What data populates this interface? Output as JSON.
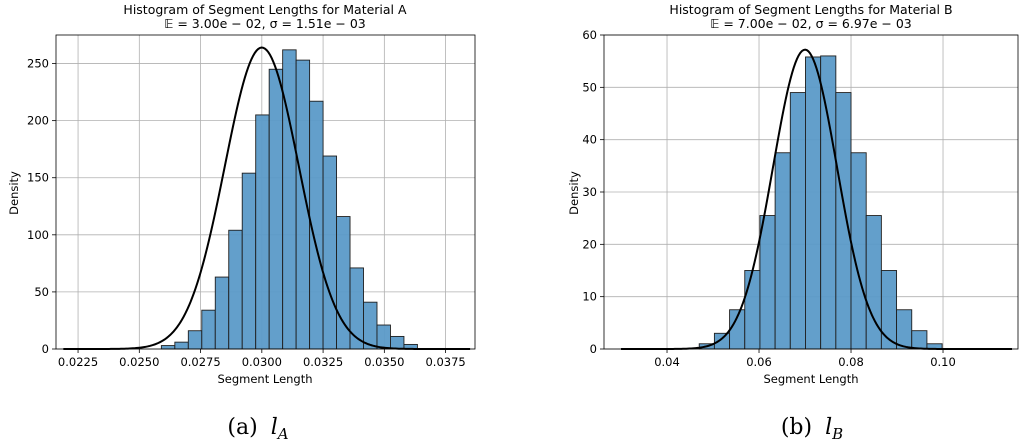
{
  "chart_data": [
    {
      "type": "histogram",
      "title": "Histogram of Segment Lengths for Material A",
      "subtitle": "𝔼 = 3.00e − 02, σ = 1.51e − 03",
      "xlabel": "Segment Length",
      "ylabel": "Density",
      "xlim": [
        0.0216,
        0.0387
      ],
      "ylim": [
        0,
        275
      ],
      "xticks": [
        0.0225,
        0.025,
        0.0275,
        0.03,
        0.0325,
        0.035,
        0.0375
      ],
      "xtick_labels": [
        "0.0225",
        "0.0250",
        "0.0275",
        "0.0300",
        "0.0325",
        "0.0350",
        "0.0375"
      ],
      "yticks": [
        0,
        50,
        100,
        150,
        200,
        250
      ],
      "ytick_labels": [
        "0",
        "50",
        "100",
        "150",
        "200",
        "250"
      ],
      "grid": true,
      "bar_color": "#5b9ac8",
      "curve_color": "#000000",
      "bins": [
        {
          "x0": 0.0259,
          "x1": 0.02645,
          "value": 3
        },
        {
          "x0": 0.02645,
          "x1": 0.027,
          "value": 6
        },
        {
          "x0": 0.027,
          "x1": 0.02755,
          "value": 16
        },
        {
          "x0": 0.02755,
          "x1": 0.0281,
          "value": 34
        },
        {
          "x0": 0.0281,
          "x1": 0.02865,
          "value": 63
        },
        {
          "x0": 0.02865,
          "x1": 0.0292,
          "value": 104
        },
        {
          "x0": 0.0292,
          "x1": 0.02975,
          "value": 154
        },
        {
          "x0": 0.02975,
          "x1": 0.0303,
          "value": 205
        },
        {
          "x0": 0.0303,
          "x1": 0.03085,
          "value": 245
        },
        {
          "x0": 0.03085,
          "x1": 0.0314,
          "value": 262
        },
        {
          "x0": 0.0314,
          "x1": 0.03195,
          "value": 253
        },
        {
          "x0": 0.03195,
          "x1": 0.0325,
          "value": 217
        },
        {
          "x0": 0.0325,
          "x1": 0.03305,
          "value": 169
        },
        {
          "x0": 0.03305,
          "x1": 0.0336,
          "value": 116
        },
        {
          "x0": 0.0336,
          "x1": 0.03415,
          "value": 71
        },
        {
          "x0": 0.03415,
          "x1": 0.0347,
          "value": 41
        },
        {
          "x0": 0.0347,
          "x1": 0.03525,
          "value": 21
        },
        {
          "x0": 0.03525,
          "x1": 0.0358,
          "value": 11
        },
        {
          "x0": 0.0358,
          "x1": 0.03635,
          "value": 4
        }
      ],
      "curve": {
        "mean": 0.03,
        "sigma": 0.00151,
        "xmin": 0.0219,
        "xmax": 0.0385,
        "peak": 264
      }
    },
    {
      "type": "histogram",
      "title": "Histogram of Segment Lengths for Material B",
      "subtitle": "𝔼 = 7.00e − 02, σ = 6.97e − 03",
      "xlabel": "Segment Length",
      "ylabel": "Density",
      "xlim": [
        0.0263,
        0.1163
      ],
      "ylim": [
        0,
        60
      ],
      "xticks": [
        0.04,
        0.06,
        0.08,
        0.1
      ],
      "xtick_labels": [
        "0.04",
        "0.06",
        "0.08",
        "0.10"
      ],
      "yticks": [
        0,
        10,
        20,
        30,
        40,
        50,
        60
      ],
      "ytick_labels": [
        "0",
        "10",
        "20",
        "30",
        "40",
        "50",
        "60"
      ],
      "grid": true,
      "bar_color": "#5b9ac8",
      "curve_color": "#000000",
      "bins": [
        {
          "x0": 0.047,
          "x1": 0.0503,
          "value": 1
        },
        {
          "x0": 0.0503,
          "x1": 0.0536,
          "value": 3
        },
        {
          "x0": 0.0536,
          "x1": 0.0569,
          "value": 7.5
        },
        {
          "x0": 0.0569,
          "x1": 0.0602,
          "value": 15
        },
        {
          "x0": 0.0602,
          "x1": 0.0635,
          "value": 25.5
        },
        {
          "x0": 0.0635,
          "x1": 0.0668,
          "value": 37.5
        },
        {
          "x0": 0.0668,
          "x1": 0.0701,
          "value": 49
        },
        {
          "x0": 0.0701,
          "x1": 0.0734,
          "value": 55.8
        },
        {
          "x0": 0.0734,
          "x1": 0.0767,
          "value": 56
        },
        {
          "x0": 0.0767,
          "x1": 0.08,
          "value": 49
        },
        {
          "x0": 0.08,
          "x1": 0.0833,
          "value": 37.5
        },
        {
          "x0": 0.0833,
          "x1": 0.0866,
          "value": 25.5
        },
        {
          "x0": 0.0866,
          "x1": 0.0899,
          "value": 15
        },
        {
          "x0": 0.0899,
          "x1": 0.0932,
          "value": 7.5
        },
        {
          "x0": 0.0932,
          "x1": 0.0965,
          "value": 3.5
        },
        {
          "x0": 0.0965,
          "x1": 0.0998,
          "value": 1
        }
      ],
      "curve": {
        "mean": 0.07,
        "sigma": 0.00697,
        "xmin": 0.03,
        "xmax": 0.115,
        "peak": 57.2
      }
    }
  ],
  "captions": [
    {
      "prefix": "(a)",
      "var": "l",
      "sub": "A"
    },
    {
      "prefix": "(b)",
      "var": "l",
      "sub": "B"
    }
  ]
}
